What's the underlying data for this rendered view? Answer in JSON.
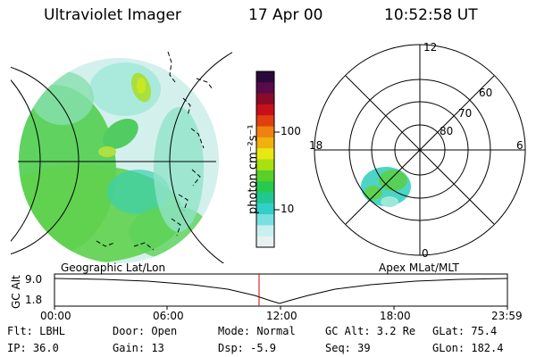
{
  "header": {
    "title": "Ultraviolet Imager",
    "date": "17 Apr 00",
    "time": "10:52:58 UT"
  },
  "geo_panel": {
    "caption": "Geographic Lat/Lon"
  },
  "apex_panel": {
    "caption": "Apex MLat/MLT",
    "mlt_labels": [
      "12",
      "18",
      "6",
      "0"
    ],
    "lat_labels": [
      "60",
      "70",
      "80"
    ]
  },
  "colorbar": {
    "label": "photon cm⁻²s⁻¹",
    "ticks": [
      "100",
      "10"
    ],
    "scale": "log",
    "colors": [
      "#2a0a3a",
      "#5a0a4a",
      "#8a0a2a",
      "#c8101a",
      "#e04010",
      "#f08010",
      "#f0b010",
      "#e8e810",
      "#a8e010",
      "#58d028",
      "#28c850",
      "#20c890",
      "#30d0c8",
      "#78e0e0",
      "#c8f0f0",
      "#e8f0f0"
    ]
  },
  "altitude_plot": {
    "ylabel": "GC Alt",
    "y_ticks": [
      "9.0",
      "1.8"
    ],
    "x_ticks": [
      "00:00",
      "06:00",
      "12:00",
      "18:00",
      "23:59"
    ],
    "current_time_color": "#cc0000"
  },
  "info": {
    "filter": "Flt: LBHL",
    "door": "Door: Open",
    "mode": "Mode: Normal",
    "gc_alt": "GC Alt: 3.2 Re",
    "glat": "GLat: 75.4",
    "ip": "IP: 36.0",
    "gain": "Gain: 13",
    "dsp": "Dsp:    -5.9",
    "seq": "Seq: 39",
    "glon": "GLon: 182.4"
  }
}
